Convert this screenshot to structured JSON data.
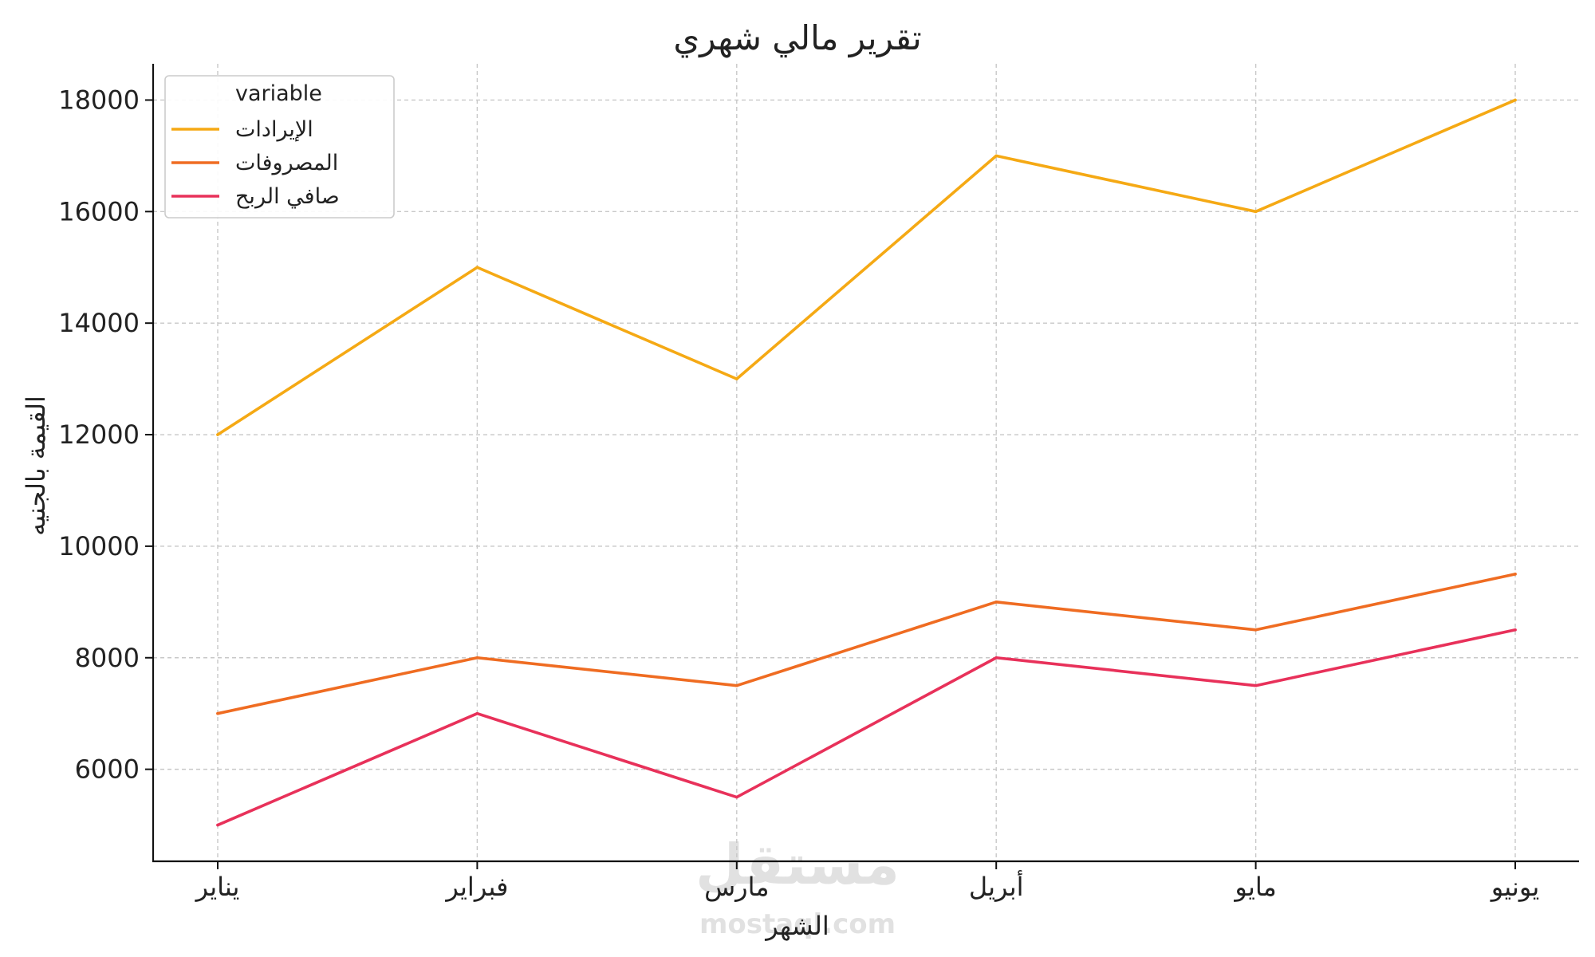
{
  "chart_data": {
    "type": "line",
    "title": "تقرير مالي شهري",
    "xlabel": "الشهر",
    "ylabel": "القيمة بالجنيه",
    "categories": [
      "يناير",
      "فبراير",
      "مارس",
      "أبريل",
      "مايو",
      "يونيو"
    ],
    "yticks": [
      6000,
      8000,
      10000,
      12000,
      14000,
      16000,
      18000
    ],
    "ylim": [
      4350,
      18650
    ],
    "grid": true,
    "legend": {
      "title": "variable",
      "position": "top-left"
    },
    "series": [
      {
        "name": "الإيرادات",
        "color": "#f5a914",
        "values": [
          12000,
          15000,
          13000,
          17000,
          16000,
          18000
        ]
      },
      {
        "name": "المصروفات",
        "color": "#ef6c22",
        "values": [
          7000,
          8000,
          7500,
          9000,
          8500,
          9500
        ]
      },
      {
        "name": "صافي الربح",
        "color": "#e8315a",
        "values": [
          5000,
          7000,
          5500,
          8000,
          7500,
          8500
        ]
      }
    ]
  },
  "watermark": {
    "logo_text": "مستقل",
    "site_text": "mostaql.com"
  }
}
